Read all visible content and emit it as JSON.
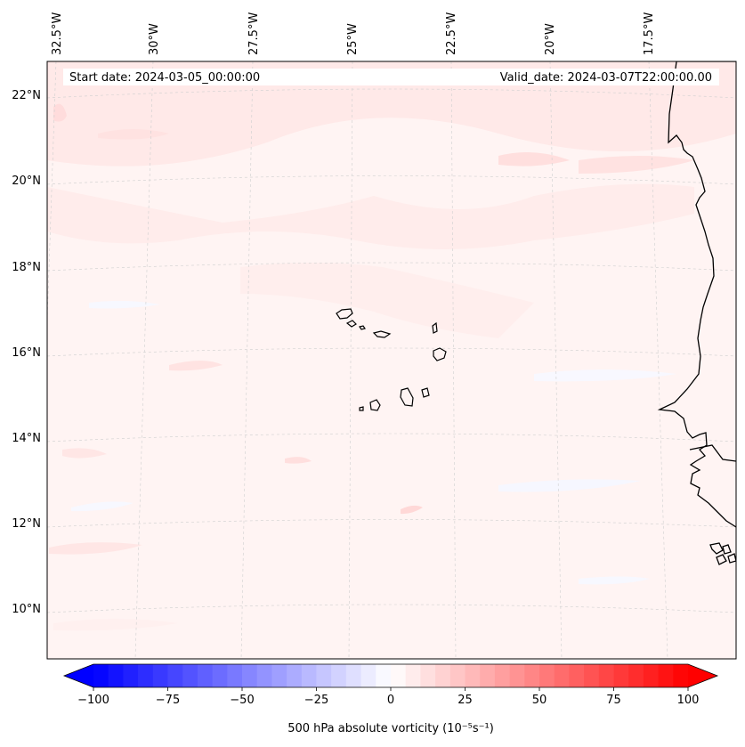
{
  "header": {
    "start_date": "Start date: 2024-03-05_00:00:00",
    "valid_date": "Valid_date: 2024-03-07T22:00:00.00"
  },
  "map": {
    "projection": "conic",
    "longitude_labels": [
      "32.5°W",
      "30°W",
      "27.5°W",
      "25°W",
      "22.5°W",
      "20°W",
      "17.5°W"
    ],
    "latitude_labels": [
      "22°N",
      "20°N",
      "18°N",
      "16°N",
      "14°N",
      "12°N",
      "10°N"
    ],
    "gridlines": true,
    "background_field_color": "#fff3f2",
    "features": [
      "Cape Verde islands",
      "West African coastline"
    ]
  },
  "colorbar": {
    "label": "500 hPa absolute vorticity (10⁻⁵s⁻¹)",
    "ticks": [
      "−100",
      "−75",
      "−50",
      "−25",
      "0",
      "25",
      "50",
      "75",
      "100"
    ],
    "min": -100,
    "max": 100,
    "levels": 40,
    "colormap": "bwr",
    "extend": "both",
    "colors": {
      "low": "#0000ff",
      "mid": "#ffffff",
      "high": "#ff0000"
    }
  }
}
